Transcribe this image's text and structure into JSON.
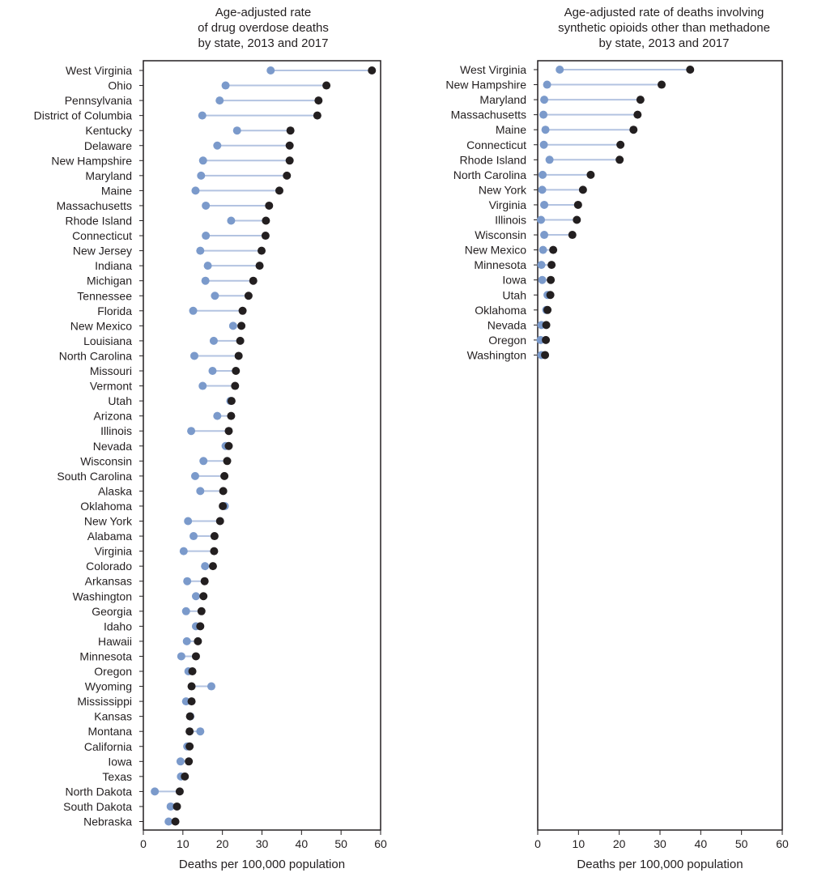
{
  "colors": {
    "y2013": "#7b9acb",
    "y2017": "#231f20",
    "connector": "#b3c3e1",
    "axis": "#231f20"
  },
  "chart_data": [
    {
      "type": "dumbbell",
      "title": "Age-adjusted rate\nof drug overdose deaths\nby state, 2013 and 2017",
      "xlabel": "Deaths per 100,000 population",
      "xlim": [
        0,
        60
      ],
      "xticks": [
        0,
        10,
        20,
        30,
        40,
        50,
        60
      ],
      "grid": false,
      "legend": "none",
      "series_names": [
        "2013",
        "2017"
      ],
      "points": [
        {
          "state": "West Virginia",
          "v2013": 32.2,
          "v2017": 57.8
        },
        {
          "state": "Ohio",
          "v2013": 20.8,
          "v2017": 46.3
        },
        {
          "state": "Pennsylvania",
          "v2013": 19.3,
          "v2017": 44.3
        },
        {
          "state": "District of Columbia",
          "v2013": 14.9,
          "v2017": 44.0
        },
        {
          "state": "Kentucky",
          "v2013": 23.7,
          "v2017": 37.2
        },
        {
          "state": "Delaware",
          "v2013": 18.7,
          "v2017": 37.0
        },
        {
          "state": "New Hampshire",
          "v2013": 15.1,
          "v2017": 37.0
        },
        {
          "state": "Maryland",
          "v2013": 14.6,
          "v2017": 36.3
        },
        {
          "state": "Maine",
          "v2013": 13.2,
          "v2017": 34.4
        },
        {
          "state": "Massachusetts",
          "v2013": 15.8,
          "v2017": 31.8
        },
        {
          "state": "Rhode Island",
          "v2013": 22.2,
          "v2017": 31.0
        },
        {
          "state": "Connecticut",
          "v2013": 15.8,
          "v2017": 30.9
        },
        {
          "state": "New Jersey",
          "v2013": 14.4,
          "v2017": 29.9
        },
        {
          "state": "Indiana",
          "v2013": 16.3,
          "v2017": 29.4
        },
        {
          "state": "Michigan",
          "v2013": 15.7,
          "v2017": 27.8
        },
        {
          "state": "Tennessee",
          "v2013": 18.1,
          "v2017": 26.6
        },
        {
          "state": "Florida",
          "v2013": 12.6,
          "v2017": 25.1
        },
        {
          "state": "New Mexico",
          "v2013": 22.7,
          "v2017": 24.8
        },
        {
          "state": "Louisiana",
          "v2013": 17.8,
          "v2017": 24.5
        },
        {
          "state": "North Carolina",
          "v2013": 12.9,
          "v2017": 24.1
        },
        {
          "state": "Missouri",
          "v2013": 17.5,
          "v2017": 23.4
        },
        {
          "state": "Vermont",
          "v2013": 15.0,
          "v2017": 23.2
        },
        {
          "state": "Utah",
          "v2013": 22.0,
          "v2017": 22.3
        },
        {
          "state": "Arizona",
          "v2013": 18.7,
          "v2017": 22.2
        },
        {
          "state": "Illinois",
          "v2013": 12.1,
          "v2017": 21.6
        },
        {
          "state": "Nevada",
          "v2013": 20.8,
          "v2017": 21.6
        },
        {
          "state": "Wisconsin",
          "v2013": 15.2,
          "v2017": 21.2
        },
        {
          "state": "South Carolina",
          "v2013": 13.1,
          "v2017": 20.5
        },
        {
          "state": "Alaska",
          "v2013": 14.4,
          "v2017": 20.2
        },
        {
          "state": "Oklahoma",
          "v2013": 20.6,
          "v2017": 20.1
        },
        {
          "state": "New York",
          "v2013": 11.3,
          "v2017": 19.4
        },
        {
          "state": "Alabama",
          "v2013": 12.7,
          "v2017": 18.0
        },
        {
          "state": "Virginia",
          "v2013": 10.2,
          "v2017": 17.9
        },
        {
          "state": "Colorado",
          "v2013": 15.6,
          "v2017": 17.6
        },
        {
          "state": "Arkansas",
          "v2013": 11.1,
          "v2017": 15.5
        },
        {
          "state": "Washington",
          "v2013": 13.3,
          "v2017": 15.2
        },
        {
          "state": "Georgia",
          "v2013": 10.8,
          "v2017": 14.7
        },
        {
          "state": "Idaho",
          "v2013": 13.3,
          "v2017": 14.4
        },
        {
          "state": "Hawaii",
          "v2013": 11.0,
          "v2017": 13.8
        },
        {
          "state": "Minnesota",
          "v2013": 9.6,
          "v2017": 13.3
        },
        {
          "state": "Oregon",
          "v2013": 11.4,
          "v2017": 12.4
        },
        {
          "state": "Wyoming",
          "v2013": 17.2,
          "v2017": 12.2
        },
        {
          "state": "Mississippi",
          "v2013": 10.8,
          "v2017": 12.2
        },
        {
          "state": "Kansas",
          "v2013": 11.9,
          "v2017": 11.8
        },
        {
          "state": "Montana",
          "v2013": 14.4,
          "v2017": 11.7
        },
        {
          "state": "California",
          "v2013": 11.1,
          "v2017": 11.7
        },
        {
          "state": "Iowa",
          "v2013": 9.4,
          "v2017": 11.5
        },
        {
          "state": "Texas",
          "v2013": 9.5,
          "v2017": 10.5
        },
        {
          "state": "North Dakota",
          "v2013": 2.9,
          "v2017": 9.2
        },
        {
          "state": "South Dakota",
          "v2013": 6.9,
          "v2017": 8.5
        },
        {
          "state": "Nebraska",
          "v2013": 6.4,
          "v2017": 8.1
        }
      ]
    },
    {
      "type": "dumbbell",
      "title": "Age-adjusted rate of deaths involving\nsynthetic opioids other than methadone\nby state, 2013 and 2017",
      "xlabel": "Deaths per 100,000 population",
      "xlim": [
        0,
        60
      ],
      "xticks": [
        0,
        10,
        20,
        30,
        40,
        50,
        60
      ],
      "grid": false,
      "legend": "none",
      "series_names": [
        "2013",
        "2017"
      ],
      "points": [
        {
          "state": "West Virginia",
          "v2013": 5.4,
          "v2017": 37.4
        },
        {
          "state": "New Hampshire",
          "v2013": 2.3,
          "v2017": 30.4
        },
        {
          "state": "Maryland",
          "v2013": 1.6,
          "v2017": 25.2
        },
        {
          "state": "Massachusetts",
          "v2013": 1.4,
          "v2017": 24.5
        },
        {
          "state": "Maine",
          "v2013": 1.9,
          "v2017": 23.5
        },
        {
          "state": "Connecticut",
          "v2013": 1.5,
          "v2017": 20.3
        },
        {
          "state": "Rhode Island",
          "v2013": 2.9,
          "v2017": 20.1
        },
        {
          "state": "North Carolina",
          "v2013": 1.2,
          "v2017": 13.0
        },
        {
          "state": "New York",
          "v2013": 1.1,
          "v2017": 11.1
        },
        {
          "state": "Virginia",
          "v2013": 1.6,
          "v2017": 9.9
        },
        {
          "state": "Illinois",
          "v2013": 0.8,
          "v2017": 9.6
        },
        {
          "state": "Wisconsin",
          "v2013": 1.6,
          "v2017": 8.5
        },
        {
          "state": "New Mexico",
          "v2013": 1.3,
          "v2017": 3.8
        },
        {
          "state": "Minnesota",
          "v2013": 0.9,
          "v2017": 3.4
        },
        {
          "state": "Iowa",
          "v2013": 1.1,
          "v2017": 3.2
        },
        {
          "state": "Utah",
          "v2013": 2.4,
          "v2017": 3.1
        },
        {
          "state": "Oklahoma",
          "v2013": 2.1,
          "v2017": 2.4
        },
        {
          "state": "Nevada",
          "v2013": 0.9,
          "v2017": 2.1
        },
        {
          "state": "Oregon",
          "v2013": 0.7,
          "v2017": 2.0
        },
        {
          "state": "Washington",
          "v2013": 0.9,
          "v2017": 1.8
        }
      ]
    }
  ]
}
